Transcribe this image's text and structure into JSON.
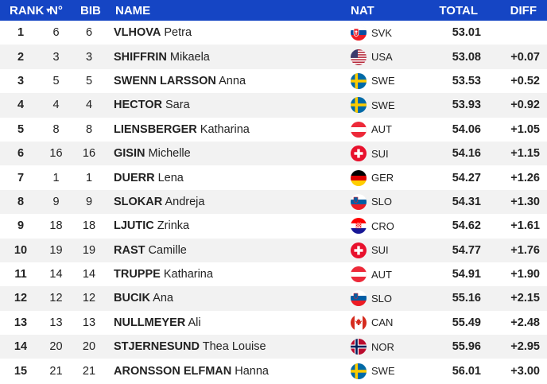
{
  "columns": {
    "rank": "RANK",
    "no": "N°",
    "bib": "BIB",
    "name": "NAME",
    "nat": "NAT",
    "total": "TOTAL",
    "diff": "DIFF"
  },
  "rows": [
    {
      "rank": "1",
      "no": "6",
      "bib": "6",
      "surname": "VLHOVA",
      "firstname": "Petra",
      "nat": "SVK",
      "flag": "svk-flag-icon",
      "total": "53.01",
      "diff": ""
    },
    {
      "rank": "2",
      "no": "3",
      "bib": "3",
      "surname": "SHIFFRIN",
      "firstname": "Mikaela",
      "nat": "USA",
      "flag": "usa-flag-icon",
      "total": "53.08",
      "diff": "+0.07"
    },
    {
      "rank": "3",
      "no": "5",
      "bib": "5",
      "surname": "SWENN LARSSON",
      "firstname": "Anna",
      "nat": "SWE",
      "flag": "swe-flag-icon",
      "total": "53.53",
      "diff": "+0.52"
    },
    {
      "rank": "4",
      "no": "4",
      "bib": "4",
      "surname": "HECTOR",
      "firstname": "Sara",
      "nat": "SWE",
      "flag": "swe-flag-icon",
      "total": "53.93",
      "diff": "+0.92"
    },
    {
      "rank": "5",
      "no": "8",
      "bib": "8",
      "surname": "LIENSBERGER",
      "firstname": "Katharina",
      "nat": "AUT",
      "flag": "aut-flag-icon",
      "total": "54.06",
      "diff": "+1.05"
    },
    {
      "rank": "6",
      "no": "16",
      "bib": "16",
      "surname": "GISIN",
      "firstname": "Michelle",
      "nat": "SUI",
      "flag": "sui-flag-icon",
      "total": "54.16",
      "diff": "+1.15"
    },
    {
      "rank": "7",
      "no": "1",
      "bib": "1",
      "surname": "DUERR",
      "firstname": "Lena",
      "nat": "GER",
      "flag": "ger-flag-icon",
      "total": "54.27",
      "diff": "+1.26"
    },
    {
      "rank": "8",
      "no": "9",
      "bib": "9",
      "surname": "SLOKAR",
      "firstname": "Andreja",
      "nat": "SLO",
      "flag": "slo-flag-icon",
      "total": "54.31",
      "diff": "+1.30"
    },
    {
      "rank": "9",
      "no": "18",
      "bib": "18",
      "surname": "LJUTIC",
      "firstname": "Zrinka",
      "nat": "CRO",
      "flag": "cro-flag-icon",
      "total": "54.62",
      "diff": "+1.61"
    },
    {
      "rank": "10",
      "no": "19",
      "bib": "19",
      "surname": "RAST",
      "firstname": "Camille",
      "nat": "SUI",
      "flag": "sui-flag-icon",
      "total": "54.77",
      "diff": "+1.76"
    },
    {
      "rank": "11",
      "no": "14",
      "bib": "14",
      "surname": "TRUPPE",
      "firstname": "Katharina",
      "nat": "AUT",
      "flag": "aut-flag-icon",
      "total": "54.91",
      "diff": "+1.90"
    },
    {
      "rank": "12",
      "no": "12",
      "bib": "12",
      "surname": "BUCIK",
      "firstname": "Ana",
      "nat": "SLO",
      "flag": "slo-flag-icon",
      "total": "55.16",
      "diff": "+2.15"
    },
    {
      "rank": "13",
      "no": "13",
      "bib": "13",
      "surname": "NULLMEYER",
      "firstname": "Ali",
      "nat": "CAN",
      "flag": "can-flag-icon",
      "total": "55.49",
      "diff": "+2.48"
    },
    {
      "rank": "14",
      "no": "20",
      "bib": "20",
      "surname": "STJERNESUND",
      "firstname": "Thea Louise",
      "nat": "NOR",
      "flag": "nor-flag-icon",
      "total": "55.96",
      "diff": "+2.95"
    },
    {
      "rank": "15",
      "no": "21",
      "bib": "21",
      "surname": "ARONSSON ELFMAN",
      "firstname": "Hanna",
      "nat": "SWE",
      "flag": "swe-flag-icon",
      "total": "56.01",
      "diff": "+3.00"
    }
  ],
  "colors": {
    "header_bg": "#1545c4",
    "row_alt_bg": "#f2f2f2"
  }
}
